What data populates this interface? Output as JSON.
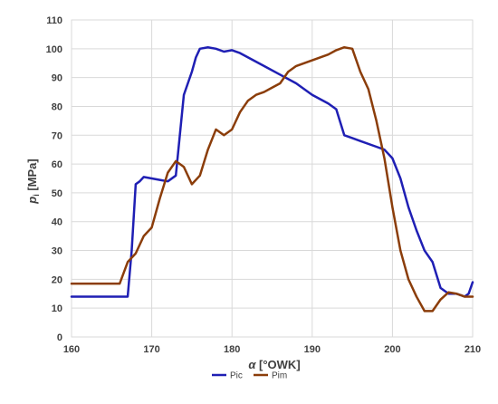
{
  "chart_data": {
    "type": "line",
    "xlabel": "α [°OWK]",
    "ylabel": "p",
    "ylabel_subscript": "i",
    "ylabel_unit": " [MPa]",
    "xlim": [
      160,
      210
    ],
    "ylim": [
      0,
      110
    ],
    "x_ticks": [
      160,
      170,
      180,
      190,
      200,
      210
    ],
    "y_ticks": [
      0,
      10,
      20,
      30,
      40,
      50,
      60,
      70,
      80,
      90,
      100,
      110
    ],
    "grid": true,
    "legend_position": "bottom",
    "series": [
      {
        "name": "Pic",
        "color": "#1f1fb4",
        "points": [
          [
            160,
            14
          ],
          [
            166.5,
            14
          ],
          [
            167,
            14
          ],
          [
            167.5,
            30
          ],
          [
            168,
            53
          ],
          [
            168.5,
            54
          ],
          [
            169,
            55.5
          ],
          [
            170,
            55
          ],
          [
            171,
            54.5
          ],
          [
            172,
            54
          ],
          [
            173,
            56
          ],
          [
            173.5,
            70
          ],
          [
            174,
            84
          ],
          [
            175,
            92
          ],
          [
            175.5,
            97
          ],
          [
            176,
            100
          ],
          [
            177,
            100.5
          ],
          [
            178,
            100
          ],
          [
            179,
            99
          ],
          [
            180,
            99.5
          ],
          [
            181,
            98.5
          ],
          [
            182,
            97
          ],
          [
            184,
            94
          ],
          [
            186,
            91
          ],
          [
            188,
            88
          ],
          [
            190,
            84
          ],
          [
            192,
            81
          ],
          [
            193,
            79
          ],
          [
            194,
            70
          ],
          [
            195,
            69
          ],
          [
            196,
            68
          ],
          [
            198,
            66
          ],
          [
            199,
            65
          ],
          [
            200,
            62
          ],
          [
            201,
            55
          ],
          [
            202,
            45
          ],
          [
            203,
            37
          ],
          [
            204,
            30
          ],
          [
            205,
            26
          ],
          [
            206,
            17
          ],
          [
            207,
            15
          ],
          [
            208,
            15
          ],
          [
            209,
            14
          ],
          [
            209.5,
            15
          ],
          [
            210,
            19
          ]
        ]
      },
      {
        "name": "Pim",
        "color": "#8b3d0a",
        "points": [
          [
            160,
            18.5
          ],
          [
            166,
            18.5
          ],
          [
            167,
            26
          ],
          [
            168,
            29
          ],
          [
            169,
            35
          ],
          [
            170,
            38
          ],
          [
            171,
            48
          ],
          [
            172,
            57
          ],
          [
            173,
            61
          ],
          [
            174,
            59
          ],
          [
            175,
            53
          ],
          [
            176,
            56
          ],
          [
            177,
            65
          ],
          [
            178,
            72
          ],
          [
            179,
            70
          ],
          [
            180,
            72
          ],
          [
            181,
            78
          ],
          [
            182,
            82
          ],
          [
            183,
            84
          ],
          [
            184,
            85
          ],
          [
            185,
            86.5
          ],
          [
            186,
            88
          ],
          [
            187,
            92
          ],
          [
            188,
            94
          ],
          [
            190,
            96
          ],
          [
            192,
            98
          ],
          [
            193,
            99.5
          ],
          [
            194,
            100.5
          ],
          [
            195,
            100
          ],
          [
            196,
            92
          ],
          [
            197,
            86
          ],
          [
            198,
            75
          ],
          [
            199,
            62
          ],
          [
            200,
            45
          ],
          [
            201,
            30
          ],
          [
            202,
            20
          ],
          [
            203,
            14
          ],
          [
            204,
            9
          ],
          [
            205,
            9
          ],
          [
            206,
            13
          ],
          [
            207,
            15.5
          ],
          [
            208,
            15
          ],
          [
            209,
            14
          ],
          [
            210,
            14
          ]
        ]
      }
    ]
  }
}
